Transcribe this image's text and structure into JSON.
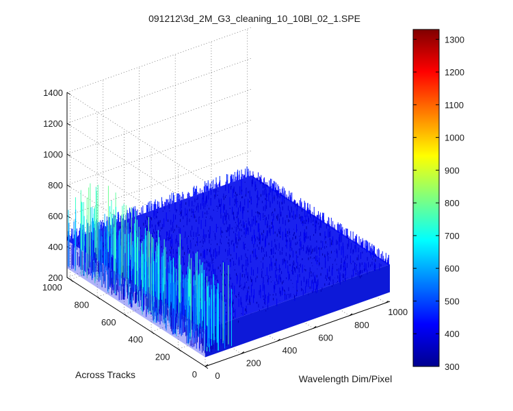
{
  "chart_data": {
    "type": "surface",
    "title": "091212\\3d_2M_G3_cleaning_10_10Bl_02_1.SPE",
    "xlabel": "Wavelength Dim/Pixel",
    "ylabel": "Across Tracks",
    "zlabel": "",
    "xlim": [
      0,
      1024
    ],
    "ylim": [
      0,
      1024
    ],
    "zlim": [
      200,
      1400
    ],
    "x_ticks": [
      0,
      200,
      400,
      600,
      800,
      1000
    ],
    "y_ticks": [
      0,
      200,
      400,
      600,
      800,
      1000
    ],
    "z_ticks": [
      200,
      400,
      600,
      800,
      1000,
      1200,
      1400
    ],
    "grid": true,
    "colormap": "jet",
    "colorbar": {
      "range": [
        300,
        1330
      ],
      "ticks": [
        300,
        400,
        500,
        600,
        700,
        800,
        900,
        1000,
        1100,
        1200,
        1300
      ],
      "placement": "right"
    },
    "surface": {
      "baseline_level": 440,
      "noise_amplitude": 40,
      "edge_spike_region": "wavelength pixel 0-150, all across tracks",
      "edge_spike_max": 800
    }
  }
}
